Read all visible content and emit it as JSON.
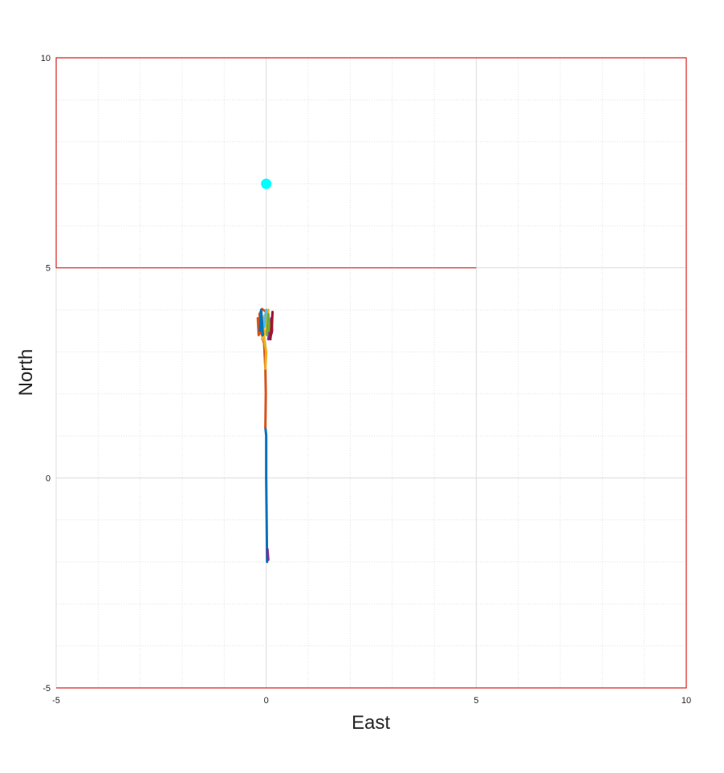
{
  "chart_data": {
    "type": "line",
    "xlabel": "East",
    "ylabel": "North",
    "xlim": [
      -5,
      10
    ],
    "ylim": [
      -5,
      10
    ],
    "xticks": [
      "-5",
      "0",
      "5",
      "10"
    ],
    "yticks": [
      "-5",
      "0",
      "5",
      "10"
    ],
    "major_tick_step": 5,
    "minor_tick_step": 1,
    "grid": true,
    "boundary": {
      "color": "#d62020",
      "points": [
        [
          -5,
          -5
        ],
        [
          10,
          -5
        ],
        [
          10,
          10
        ],
        [
          -5,
          10
        ],
        [
          -5,
          5
        ],
        [
          5,
          5
        ]
      ]
    },
    "target": {
      "x": 0,
      "y": 7,
      "color": "#00ffff"
    },
    "series": [
      {
        "color": "#0072bd",
        "points": [
          [
            0.02,
            -2.0
          ],
          [
            0.01,
            -1.0
          ],
          [
            0.0,
            0.0
          ],
          [
            0.0,
            1.0
          ],
          [
            -0.02,
            1.2
          ]
        ]
      },
      {
        "color": "#d95319",
        "points": [
          [
            -0.02,
            1.2
          ],
          [
            -0.01,
            2.0
          ],
          [
            -0.02,
            2.6
          ],
          [
            -0.05,
            3.2
          ],
          [
            -0.12,
            3.5
          ],
          [
            -0.16,
            3.9
          ],
          [
            -0.1,
            4.02
          ],
          [
            0.0,
            3.95
          ],
          [
            -0.05,
            3.6
          ],
          [
            -0.18,
            3.4
          ],
          [
            -0.2,
            3.8
          ]
        ]
      },
      {
        "color": "#edb120",
        "points": [
          [
            -0.02,
            2.6
          ],
          [
            0.0,
            3.0
          ],
          [
            -0.05,
            3.3
          ],
          [
            -0.08,
            3.8
          ],
          [
            0.05,
            4.0
          ],
          [
            0.0,
            3.5
          ],
          [
            -0.1,
            3.3
          ]
        ]
      },
      {
        "color": "#7e2f8e",
        "points": [
          [
            0.05,
            -1.95
          ],
          [
            0.03,
            -1.7
          ]
        ]
      },
      {
        "color": "#7e2f8e",
        "points": [
          [
            0.05,
            3.3
          ],
          [
            0.12,
            3.8
          ],
          [
            0.14,
            3.5
          ],
          [
            0.1,
            3.35
          ]
        ]
      },
      {
        "color": "#77ac30",
        "points": [
          [
            0.02,
            3.4
          ],
          [
            0.05,
            3.9
          ],
          [
            0.08,
            3.5
          ]
        ]
      },
      {
        "color": "#4dbeee",
        "points": [
          [
            -0.05,
            3.6
          ],
          [
            0.0,
            4.0
          ]
        ]
      },
      {
        "color": "#a2142f",
        "points": [
          [
            0.1,
            3.3
          ],
          [
            0.15,
            3.95
          ],
          [
            0.13,
            3.45
          ]
        ]
      },
      {
        "color": "#0072bd",
        "points": [
          [
            -0.15,
            3.5
          ],
          [
            -0.12,
            4.0
          ],
          [
            -0.08,
            3.4
          ]
        ]
      }
    ]
  }
}
